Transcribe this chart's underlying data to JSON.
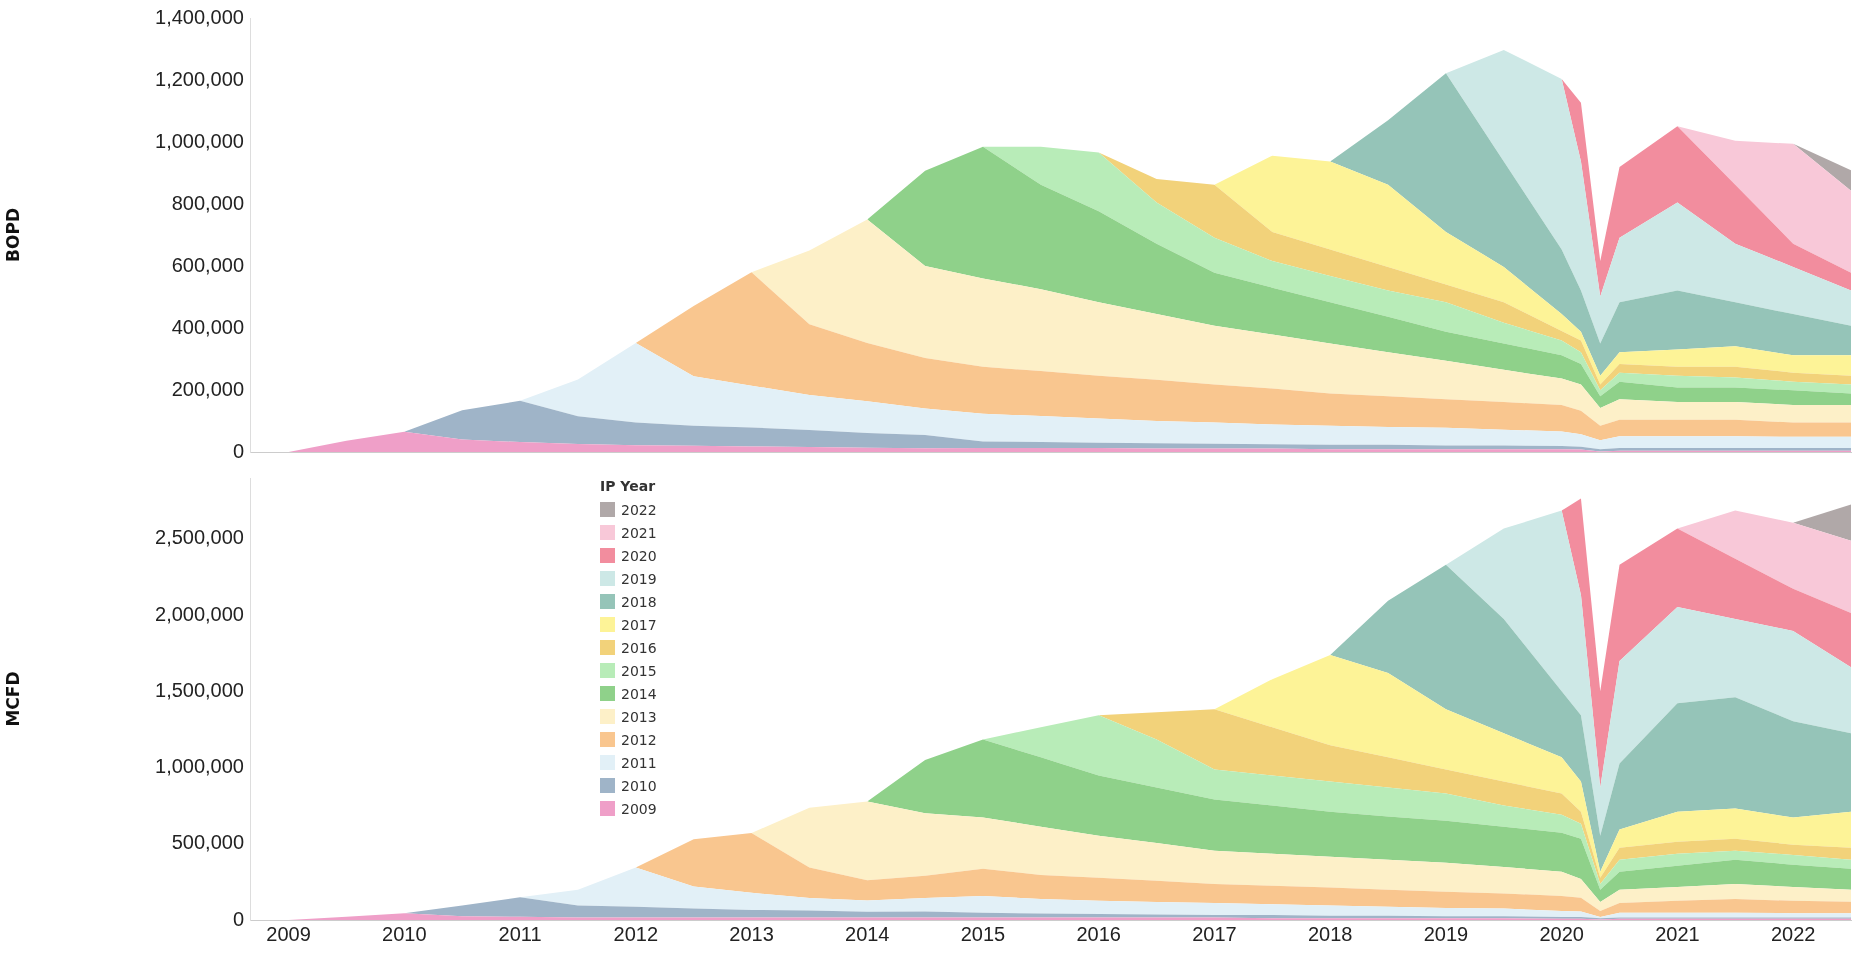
{
  "chart_data": [
    {
      "type": "area",
      "stacked": true,
      "ylabel": "BOPD",
      "tick_labels": "y",
      "x": [
        "2009-01",
        "2009-07",
        "2010-01",
        "2010-07",
        "2011-01",
        "2011-07",
        "2012-01",
        "2012-07",
        "2013-01",
        "2013-07",
        "2014-01",
        "2014-07",
        "2015-01",
        "2015-07",
        "2016-01",
        "2016-07",
        "2017-01",
        "2017-07",
        "2018-01",
        "2018-07",
        "2019-01",
        "2019-07",
        "2020-01",
        "2020-03",
        "2020-05",
        "2020-07",
        "2021-01",
        "2021-07",
        "2022-01",
        "2022-07"
      ],
      "xlim": [
        "2008-09",
        "2022-07"
      ],
      "xticks": [
        "2009",
        "2010",
        "2011",
        "2012",
        "2013",
        "2014",
        "2015",
        "2016",
        "2017",
        "2018",
        "2019",
        "2020",
        "2021",
        "2022"
      ],
      "ylim": [
        0,
        1400000
      ],
      "yticks": [
        0,
        {
          "value": 200000,
          "label": "200,000"
        },
        {
          "value": 400000,
          "label": "400,000"
        },
        {
          "value": 600000,
          "label": "600,000"
        },
        {
          "value": 800000,
          "label": "800,000"
        },
        {
          "value": 1000000,
          "label": "1,000,000"
        },
        {
          "value": 1200000,
          "label": "1,200,000"
        },
        {
          "value": 1400000,
          "label": "1,400,000"
        }
      ],
      "series": [
        {
          "color": "#ef9fc8",
          "values": [
            0,
            36000,
            65000,
            40000,
            32000,
            26000,
            22000,
            20000,
            18000,
            16000,
            14000,
            12000,
            13000,
            13000,
            13000,
            11000,
            11000,
            11000,
            9000,
            9000,
            9000,
            9000,
            9000,
            8000,
            2000,
            4000,
            4000,
            4000,
            4000,
            4000
          ]
        },
        {
          "color": "#9fb4c8",
          "values": [
            null,
            null,
            0,
            95000,
            133000,
            89000,
            73000,
            65000,
            61000,
            55000,
            47000,
            43000,
            21000,
            19000,
            17000,
            17000,
            16000,
            14000,
            14000,
            14000,
            12000,
            12000,
            10000,
            9000,
            7000,
            9000,
            9000,
            9000,
            9000,
            9000
          ]
        },
        {
          "color": "#e2f0f7",
          "values": [
            null,
            null,
            null,
            null,
            0,
            119000,
            257000,
            159000,
            135000,
            113000,
            103000,
            85000,
            89000,
            84000,
            78000,
            72000,
            68000,
            64000,
            62000,
            58000,
            57000,
            51000,
            47000,
            40000,
            29000,
            38000,
            38000,
            38000,
            36000,
            36000
          ]
        },
        {
          "color": "#f9c68f",
          "values": [
            null,
            null,
            null,
            null,
            null,
            null,
            0,
            227000,
            366000,
            228000,
            188000,
            163000,
            152000,
            145000,
            138000,
            133000,
            123000,
            116000,
            104000,
            99000,
            92000,
            89000,
            86000,
            76000,
            47000,
            53000,
            53000,
            53000,
            46000,
            46000
          ]
        },
        {
          "color": "#fdf0c8",
          "values": [
            null,
            null,
            null,
            null,
            null,
            null,
            null,
            null,
            0,
            238000,
            398000,
            297000,
            285000,
            264000,
            237000,
            212000,
            189000,
            174000,
            161000,
            142000,
            124000,
            104000,
            85000,
            85000,
            57000,
            66000,
            57000,
            57000,
            57000,
            57000
          ]
        },
        {
          "color": "#8fd18a",
          "values": [
            null,
            null,
            null,
            null,
            null,
            null,
            null,
            null,
            null,
            null,
            0,
            307000,
            425000,
            337000,
            294000,
            227000,
            171000,
            151000,
            133000,
            114000,
            94000,
            85000,
            75000,
            66000,
            38000,
            57000,
            47000,
            47000,
            47000,
            37000
          ]
        },
        {
          "color": "#b8ecb8",
          "values": [
            null,
            null,
            null,
            null,
            null,
            null,
            null,
            null,
            null,
            null,
            null,
            null,
            0,
            123000,
            189000,
            133000,
            113000,
            86000,
            85000,
            85000,
            95000,
            67000,
            48000,
            38000,
            19000,
            29000,
            38000,
            32000,
            28000,
            29000
          ]
        },
        {
          "color": "#f2d27a",
          "values": [
            null,
            null,
            null,
            null,
            null,
            null,
            null,
            null,
            null,
            null,
            null,
            null,
            null,
            null,
            0,
            76000,
            171000,
            94000,
            85000,
            76000,
            57000,
            66000,
            30000,
            38000,
            19000,
            28000,
            29000,
            35000,
            29000,
            28000
          ]
        },
        {
          "color": "#fdf397",
          "values": [
            null,
            null,
            null,
            null,
            null,
            null,
            null,
            null,
            null,
            null,
            null,
            null,
            null,
            null,
            null,
            null,
            0,
            246000,
            284000,
            265000,
            170000,
            114000,
            55000,
            28000,
            28000,
            38000,
            56000,
            66000,
            56000,
            66000
          ]
        },
        {
          "color": "#95c4b8",
          "values": [
            null,
            null,
            null,
            null,
            null,
            null,
            null,
            null,
            null,
            null,
            null,
            null,
            null,
            null,
            null,
            null,
            null,
            null,
            0,
            208000,
            512000,
            340000,
            208000,
            133000,
            104000,
            161000,
            190000,
            142000,
            133000,
            95000
          ]
        },
        {
          "color": "#cde8e6",
          "values": [
            null,
            null,
            null,
            null,
            null,
            null,
            null,
            null,
            null,
            null,
            null,
            null,
            null,
            null,
            null,
            null,
            null,
            null,
            null,
            null,
            0,
            360000,
            550000,
            416000,
            152000,
            208000,
            284000,
            189000,
            152000,
            114000
          ]
        },
        {
          "color": "#f28d9e",
          "values": [
            null,
            null,
            null,
            null,
            null,
            null,
            null,
            null,
            null,
            null,
            null,
            null,
            null,
            null,
            null,
            null,
            null,
            null,
            null,
            null,
            null,
            null,
            0,
            190000,
            114000,
            228000,
            246000,
            190000,
            75000,
            57000
          ]
        },
        {
          "color": "#f8c8d8",
          "values": [
            null,
            null,
            null,
            null,
            null,
            null,
            null,
            null,
            null,
            null,
            null,
            null,
            null,
            null,
            null,
            null,
            null,
            null,
            null,
            null,
            null,
            null,
            null,
            null,
            null,
            null,
            0,
            142000,
            322000,
            265000
          ]
        },
        {
          "color": "#b0a8a8",
          "values": [
            null,
            null,
            null,
            null,
            null,
            null,
            null,
            null,
            null,
            null,
            null,
            null,
            null,
            null,
            null,
            null,
            null,
            null,
            null,
            null,
            null,
            null,
            null,
            null,
            null,
            null,
            null,
            null,
            0,
            66000
          ]
        }
      ]
    },
    {
      "type": "area",
      "stacked": true,
      "ylabel": "MCFD",
      "legend": "top left",
      "legend_title": "IP Year",
      "x": [
        "2009-01",
        "2009-07",
        "2010-01",
        "2010-07",
        "2011-01",
        "2011-07",
        "2012-01",
        "2012-07",
        "2013-01",
        "2013-07",
        "2014-01",
        "2014-07",
        "2015-01",
        "2015-07",
        "2016-01",
        "2016-07",
        "2017-01",
        "2017-07",
        "2018-01",
        "2018-07",
        "2019-01",
        "2019-07",
        "2020-01",
        "2020-03",
        "2020-05",
        "2020-07",
        "2021-01",
        "2021-07",
        "2022-01",
        "2022-07"
      ],
      "xlim": [
        "2008-09",
        "2022-07"
      ],
      "xticks": [
        "2009",
        "2010",
        "2011",
        "2012",
        "2013",
        "2014",
        "2015",
        "2016",
        "2017",
        "2018",
        "2019",
        "2020",
        "2021",
        "2022"
      ],
      "ylim": [
        0,
        2900000
      ],
      "yticks": [
        0,
        {
          "value": 500000,
          "label": "500,000"
        },
        {
          "value": 1000000,
          "label": "1,000,000"
        },
        {
          "value": 1500000,
          "label": "1,500,000"
        },
        {
          "value": 2000000,
          "label": "2,000,000"
        },
        {
          "value": 2500000,
          "label": "2,500,000"
        }
      ],
      "series": [
        {
          "name": "2009",
          "color": "#ef9fc8",
          "values": [
            0,
            21000,
            45000,
            25000,
            21000,
            17000,
            17000,
            17000,
            17000,
            17000,
            17000,
            16000,
            16000,
            16000,
            16000,
            16000,
            16000,
            12000,
            12000,
            12000,
            12000,
            12000,
            8000,
            8000,
            4000,
            8000,
            8000,
            8000,
            8000,
            8000
          ]
        },
        {
          "name": "2010",
          "color": "#9fb4c8",
          "values": [
            null,
            null,
            0,
            70000,
            128000,
            78000,
            70000,
            58000,
            49000,
            45000,
            37000,
            39000,
            31000,
            27000,
            24000,
            20000,
            16000,
            20000,
            16000,
            16000,
            12000,
            12000,
            12000,
            12000,
            8000,
            8000,
            8000,
            8000,
            8000,
            8000
          ]
        },
        {
          "name": "2011",
          "color": "#e2f0f7",
          "values": [
            null,
            null,
            null,
            null,
            0,
            104000,
            257000,
            144000,
            112000,
            83000,
            74000,
            90000,
            111000,
            95000,
            86000,
            82000,
            79000,
            71000,
            67000,
            59000,
            55000,
            51000,
            39000,
            35000,
            8000,
            31000,
            31000,
            31000,
            29000,
            29000
          ]
        },
        {
          "name": "2012",
          "color": "#f9c68f",
          "values": [
            null,
            null,
            null,
            null,
            null,
            null,
            0,
            311000,
            393000,
            199000,
            133000,
            145000,
            178000,
            158000,
            151000,
            139000,
            126000,
            122000,
            118000,
            111000,
            107000,
            99000,
            99000,
            91000,
            39000,
            64000,
            79000,
            91000,
            81000,
            74000
          ]
        },
        {
          "name": "2013",
          "color": "#fdf0c8",
          "values": [
            null,
            null,
            null,
            null,
            null,
            null,
            null,
            null,
            0,
            393000,
            517000,
            410000,
            336000,
            316000,
            276000,
            249000,
            217000,
            210000,
            202000,
            197000,
            189000,
            174000,
            158000,
            123000,
            59000,
            87000,
            91000,
            99000,
            91000,
            79000
          ]
        },
        {
          "name": "2014",
          "color": "#8fd18a",
          "values": [
            null,
            null,
            null,
            null,
            null,
            null,
            null,
            null,
            null,
            null,
            0,
            350000,
            513000,
            455000,
            395000,
            363000,
            336000,
            316000,
            296000,
            284000,
            277000,
            264000,
            257000,
            264000,
            80000,
            118000,
            139000,
            158000,
            146000,
            138000
          ]
        },
        {
          "name": "2015",
          "color": "#b8ecb8",
          "values": [
            null,
            null,
            null,
            null,
            null,
            null,
            null,
            null,
            null,
            null,
            null,
            null,
            0,
            197000,
            395000,
            316000,
            198000,
            197000,
            198000,
            190000,
            178000,
            139000,
            118000,
            99000,
            39000,
            79000,
            79000,
            59000,
            64000,
            59000
          ]
        },
        {
          "name": "2016",
          "color": "#f2d27a",
          "values": [
            null,
            null,
            null,
            null,
            null,
            null,
            null,
            null,
            null,
            null,
            null,
            null,
            null,
            null,
            0,
            178000,
            395000,
            316000,
            237000,
            198000,
            158000,
            158000,
            139000,
            79000,
            40000,
            79000,
            79000,
            79000,
            67000,
            79000
          ]
        },
        {
          "name": "2017",
          "color": "#fdf397",
          "values": [
            null,
            null,
            null,
            null,
            null,
            null,
            null,
            null,
            null,
            null,
            null,
            null,
            null,
            null,
            null,
            null,
            0,
            316000,
            592000,
            553000,
            395000,
            316000,
            237000,
            198000,
            39000,
            119000,
            197000,
            198000,
            178000,
            237000
          ]
        },
        {
          "name": "2018",
          "color": "#95c4b8",
          "values": [
            null,
            null,
            null,
            null,
            null,
            null,
            null,
            null,
            null,
            null,
            null,
            null,
            null,
            null,
            null,
            null,
            null,
            null,
            0,
            474000,
            948000,
            750000,
            434000,
            434000,
            237000,
            434000,
            711000,
            731000,
            632000,
            514000
          ]
        },
        {
          "name": "2019",
          "color": "#cde8e6",
          "values": [
            null,
            null,
            null,
            null,
            null,
            null,
            null,
            null,
            null,
            null,
            null,
            null,
            null,
            null,
            null,
            null,
            null,
            null,
            null,
            null,
            0,
            593000,
            1185000,
            790000,
            316000,
            672000,
            632000,
            513000,
            592000,
            434000
          ]
        },
        {
          "name": "2020",
          "color": "#f28d9e",
          "values": [
            null,
            null,
            null,
            null,
            null,
            null,
            null,
            null,
            null,
            null,
            null,
            null,
            null,
            null,
            null,
            null,
            null,
            null,
            null,
            null,
            null,
            null,
            0,
            632000,
            632000,
            632000,
            514000,
            395000,
            277000,
            356000
          ]
        },
        {
          "name": "2021",
          "color": "#f8c8d8",
          "values": [
            null,
            null,
            null,
            null,
            null,
            null,
            null,
            null,
            null,
            null,
            null,
            null,
            null,
            null,
            null,
            null,
            null,
            null,
            null,
            null,
            null,
            null,
            null,
            null,
            null,
            null,
            0,
            316000,
            434000,
            474000
          ]
        },
        {
          "name": "2022",
          "color": "#b0a8a8",
          "values": [
            null,
            null,
            null,
            null,
            null,
            null,
            null,
            null,
            null,
            null,
            null,
            null,
            null,
            null,
            null,
            null,
            null,
            null,
            null,
            null,
            null,
            null,
            null,
            null,
            null,
            null,
            null,
            null,
            0,
            237000
          ]
        }
      ]
    }
  ]
}
